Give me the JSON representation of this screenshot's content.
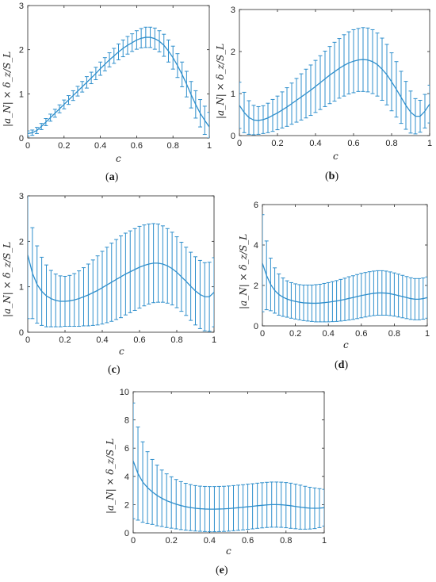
{
  "chart_data": [
    {
      "id": "a",
      "type": "line",
      "caption_label": "a",
      "xlabel": "c",
      "ylabel": "|a_N| × δ_z/S_L",
      "xlim": [
        0,
        1
      ],
      "ylim": [
        0,
        3
      ],
      "xticks": [
        "0",
        "0.2",
        "0.4",
        "0.6",
        "0.8",
        "1"
      ],
      "yticks": [
        "0",
        "1",
        "2",
        "3"
      ],
      "series": [
        {
          "color": "#2f8fcc",
          "x": [
            0,
            0.025,
            0.05,
            0.075,
            0.1,
            0.125,
            0.15,
            0.175,
            0.2,
            0.225,
            0.25,
            0.275,
            0.3,
            0.325,
            0.35,
            0.375,
            0.4,
            0.425,
            0.45,
            0.475,
            0.5,
            0.525,
            0.55,
            0.575,
            0.6,
            0.625,
            0.65,
            0.675,
            0.7,
            0.725,
            0.75,
            0.775,
            0.8,
            0.825,
            0.85,
            0.875,
            0.9,
            0.925,
            0.95,
            0.975,
            1.0
          ],
          "y": [
            0.1,
            0.12,
            0.17,
            0.26,
            0.36,
            0.46,
            0.56,
            0.66,
            0.76,
            0.86,
            0.96,
            1.06,
            1.16,
            1.26,
            1.36,
            1.46,
            1.57,
            1.67,
            1.77,
            1.86,
            1.95,
            2.03,
            2.1,
            2.16,
            2.22,
            2.26,
            2.28,
            2.28,
            2.25,
            2.19,
            2.1,
            1.97,
            1.82,
            1.64,
            1.44,
            1.22,
            0.98,
            0.76,
            0.56,
            0.4,
            0.25
          ],
          "err": [
            0.06,
            0.06,
            0.07,
            0.07,
            0.08,
            0.08,
            0.09,
            0.09,
            0.1,
            0.1,
            0.11,
            0.11,
            0.12,
            0.13,
            0.13,
            0.14,
            0.15,
            0.15,
            0.16,
            0.17,
            0.18,
            0.19,
            0.2,
            0.2,
            0.21,
            0.22,
            0.23,
            0.23,
            0.24,
            0.24,
            0.25,
            0.25,
            0.26,
            0.27,
            0.28,
            0.29,
            0.3,
            0.31,
            0.31,
            0.32,
            0.33
          ]
        }
      ]
    },
    {
      "id": "b",
      "type": "line",
      "caption_label": "b",
      "xlabel": "c",
      "ylabel": "|a_N| × δ_z/S_L",
      "xlim": [
        0,
        1
      ],
      "ylim": [
        0,
        3
      ],
      "xticks": [
        "0",
        "0.2",
        "0.4",
        "0.6",
        "0.8",
        "1"
      ],
      "yticks": [
        "0",
        "1",
        "2",
        "3"
      ],
      "series": [
        {
          "color": "#2f8fcc",
          "x": [
            0,
            0.025,
            0.05,
            0.075,
            0.1,
            0.125,
            0.15,
            0.175,
            0.2,
            0.225,
            0.25,
            0.275,
            0.3,
            0.325,
            0.35,
            0.375,
            0.4,
            0.425,
            0.45,
            0.475,
            0.5,
            0.525,
            0.55,
            0.575,
            0.6,
            0.625,
            0.65,
            0.675,
            0.7,
            0.725,
            0.75,
            0.775,
            0.8,
            0.825,
            0.85,
            0.875,
            0.9,
            0.925,
            0.95,
            0.975,
            1.0
          ],
          "y": [
            0.72,
            0.55,
            0.43,
            0.37,
            0.36,
            0.38,
            0.42,
            0.48,
            0.54,
            0.61,
            0.68,
            0.76,
            0.84,
            0.92,
            1.0,
            1.08,
            1.17,
            1.26,
            1.35,
            1.44,
            1.52,
            1.6,
            1.67,
            1.73,
            1.77,
            1.8,
            1.81,
            1.8,
            1.76,
            1.69,
            1.58,
            1.45,
            1.28,
            1.1,
            0.91,
            0.72,
            0.56,
            0.46,
            0.46,
            0.58,
            0.75
          ],
          "err": [
            0.55,
            0.48,
            0.4,
            0.35,
            0.33,
            0.33,
            0.35,
            0.38,
            0.4,
            0.43,
            0.46,
            0.49,
            0.52,
            0.55,
            0.58,
            0.6,
            0.62,
            0.64,
            0.66,
            0.68,
            0.7,
            0.71,
            0.73,
            0.74,
            0.75,
            0.75,
            0.76,
            0.76,
            0.76,
            0.75,
            0.74,
            0.72,
            0.69,
            0.66,
            0.62,
            0.57,
            0.5,
            0.42,
            0.38,
            0.4,
            0.45
          ]
        }
      ]
    },
    {
      "id": "c",
      "type": "line",
      "caption_label": "c",
      "xlabel": "c",
      "ylabel": "|a_N| × δ_z/S_L",
      "xlim": [
        0,
        1
      ],
      "ylim": [
        0,
        3
      ],
      "xticks": [
        "0",
        "0.2",
        "0.4",
        "0.6",
        "0.8",
        "1"
      ],
      "yticks": [
        "0",
        "1",
        "2",
        "3"
      ],
      "series": [
        {
          "color": "#2f8fcc",
          "x": [
            0,
            0.025,
            0.05,
            0.075,
            0.1,
            0.125,
            0.15,
            0.175,
            0.2,
            0.225,
            0.25,
            0.275,
            0.3,
            0.325,
            0.35,
            0.375,
            0.4,
            0.425,
            0.45,
            0.475,
            0.5,
            0.525,
            0.55,
            0.575,
            0.6,
            0.625,
            0.65,
            0.675,
            0.7,
            0.725,
            0.75,
            0.775,
            0.8,
            0.825,
            0.85,
            0.875,
            0.9,
            0.925,
            0.95,
            0.975,
            1.0
          ],
          "y": [
            1.7,
            1.3,
            1.05,
            0.9,
            0.8,
            0.74,
            0.7,
            0.68,
            0.68,
            0.69,
            0.71,
            0.74,
            0.78,
            0.82,
            0.87,
            0.92,
            0.98,
            1.04,
            1.1,
            1.16,
            1.22,
            1.28,
            1.33,
            1.38,
            1.43,
            1.47,
            1.5,
            1.52,
            1.52,
            1.5,
            1.46,
            1.4,
            1.32,
            1.22,
            1.12,
            1.01,
            0.91,
            0.83,
            0.78,
            0.78,
            0.88
          ],
          "err": [
            1.4,
            1.0,
            0.85,
            0.75,
            0.68,
            0.62,
            0.58,
            0.56,
            0.55,
            0.56,
            0.58,
            0.61,
            0.64,
            0.68,
            0.72,
            0.76,
            0.8,
            0.83,
            0.86,
            0.88,
            0.9,
            0.9,
            0.9,
            0.9,
            0.9,
            0.89,
            0.88,
            0.87,
            0.86,
            0.84,
            0.82,
            0.8,
            0.78,
            0.76,
            0.75,
            0.75,
            0.75,
            0.75,
            0.75,
            0.76,
            0.76
          ]
        }
      ]
    },
    {
      "id": "d",
      "type": "line",
      "caption_label": "d",
      "xlabel": "c",
      "ylabel": "|a_N| × δ_z/S_L",
      "xlim": [
        0,
        1
      ],
      "ylim": [
        0,
        6
      ],
      "xticks": [
        "0",
        "0.2",
        "0.4",
        "0.6",
        "0.8",
        "1"
      ],
      "yticks": [
        "0",
        "2",
        "4",
        "6"
      ],
      "series": [
        {
          "color": "#2f8fcc",
          "x": [
            0,
            0.025,
            0.05,
            0.075,
            0.1,
            0.125,
            0.15,
            0.175,
            0.2,
            0.225,
            0.25,
            0.275,
            0.3,
            0.325,
            0.35,
            0.375,
            0.4,
            0.425,
            0.45,
            0.475,
            0.5,
            0.525,
            0.55,
            0.575,
            0.6,
            0.625,
            0.65,
            0.675,
            0.7,
            0.725,
            0.75,
            0.775,
            0.8,
            0.825,
            0.85,
            0.875,
            0.9,
            0.925,
            0.95,
            0.975,
            1.0
          ],
          "y": [
            3.1,
            2.5,
            2.05,
            1.75,
            1.55,
            1.42,
            1.33,
            1.26,
            1.21,
            1.17,
            1.14,
            1.13,
            1.12,
            1.12,
            1.13,
            1.15,
            1.17,
            1.2,
            1.23,
            1.27,
            1.31,
            1.36,
            1.4,
            1.45,
            1.5,
            1.54,
            1.58,
            1.61,
            1.63,
            1.63,
            1.62,
            1.59,
            1.55,
            1.5,
            1.45,
            1.4,
            1.35,
            1.32,
            1.32,
            1.35,
            1.4
          ],
          "err": [
            2.4,
            1.7,
            1.3,
            1.12,
            1.02,
            0.95,
            0.9,
            0.88,
            0.87,
            0.87,
            0.88,
            0.89,
            0.9,
            0.92,
            0.93,
            0.95,
            0.97,
            0.99,
            1.01,
            1.03,
            1.05,
            1.07,
            1.08,
            1.09,
            1.1,
            1.1,
            1.1,
            1.1,
            1.1,
            1.1,
            1.09,
            1.08,
            1.07,
            1.06,
            1.05,
            1.04,
            1.03,
            1.02,
            1.02,
            1.02,
            1.02
          ]
        }
      ]
    },
    {
      "id": "e",
      "type": "line",
      "caption_label": "e",
      "xlabel": "c",
      "ylabel": "|a_N| × δ_z/S_L",
      "xlim": [
        0,
        1
      ],
      "ylim": [
        0,
        10
      ],
      "xticks": [
        "0",
        "0.2",
        "0.4",
        "0.6",
        "0.8",
        "1"
      ],
      "yticks": [
        "0",
        "2",
        "4",
        "6",
        "8",
        "10"
      ],
      "series": [
        {
          "color": "#2f8fcc",
          "x": [
            0,
            0.025,
            0.05,
            0.075,
            0.1,
            0.125,
            0.15,
            0.175,
            0.2,
            0.225,
            0.25,
            0.275,
            0.3,
            0.325,
            0.35,
            0.375,
            0.4,
            0.425,
            0.45,
            0.475,
            0.5,
            0.525,
            0.55,
            0.575,
            0.6,
            0.625,
            0.65,
            0.675,
            0.7,
            0.725,
            0.75,
            0.775,
            0.8,
            0.825,
            0.85,
            0.875,
            0.9,
            0.925,
            0.95,
            0.975,
            1.0
          ],
          "y": [
            5.1,
            4.2,
            3.6,
            3.2,
            2.9,
            2.65,
            2.45,
            2.28,
            2.15,
            2.03,
            1.93,
            1.85,
            1.79,
            1.74,
            1.71,
            1.69,
            1.68,
            1.68,
            1.69,
            1.7,
            1.72,
            1.75,
            1.78,
            1.81,
            1.85,
            1.88,
            1.92,
            1.95,
            1.98,
            2.0,
            2.0,
            1.99,
            1.96,
            1.92,
            1.87,
            1.82,
            1.78,
            1.75,
            1.74,
            1.75,
            1.78
          ],
          "err": [
            4.1,
            3.3,
            2.85,
            2.55,
            2.3,
            2.15,
            2.0,
            1.9,
            1.82,
            1.75,
            1.7,
            1.66,
            1.63,
            1.61,
            1.6,
            1.6,
            1.6,
            1.6,
            1.6,
            1.6,
            1.6,
            1.6,
            1.6,
            1.6,
            1.6,
            1.6,
            1.6,
            1.6,
            1.6,
            1.6,
            1.6,
            1.6,
            1.6,
            1.6,
            1.58,
            1.56,
            1.52,
            1.48,
            1.44,
            1.38,
            1.3
          ]
        }
      ]
    }
  ]
}
